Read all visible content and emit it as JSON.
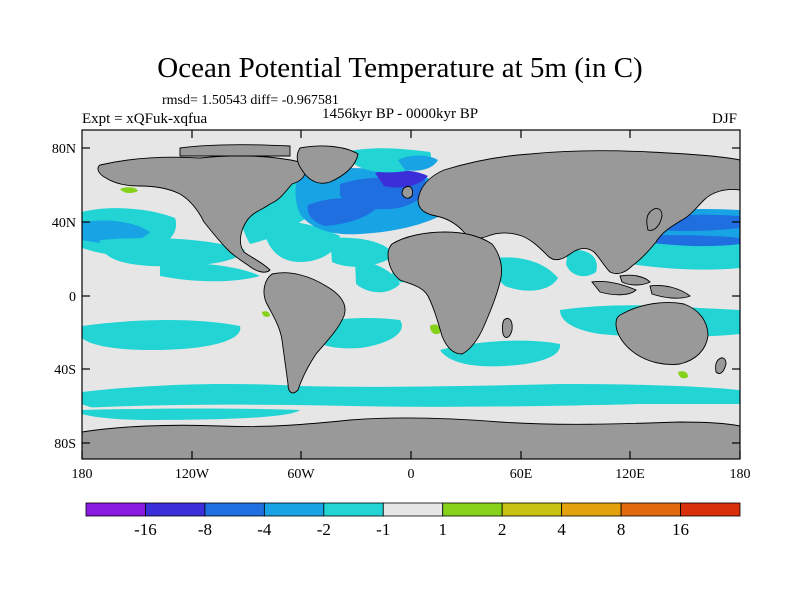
{
  "title": "Ocean Potential Temperature at 5m (in C)",
  "stats": "rmsd= 1.50543 diff= -0.967581",
  "expt": "Expt = xQFuk-xqfua",
  "period": "1456kyr BP - 0000kyr BP",
  "season": "DJF",
  "lat_ticks": [
    "80N",
    "40N",
    "0",
    "40S",
    "80S"
  ],
  "lon_ticks": [
    "180",
    "120W",
    "60W",
    "0",
    "60E",
    "120E",
    "180"
  ],
  "colorbar": {
    "labels": [
      "-16",
      "-8",
      "-4",
      "-2",
      "-1",
      "1",
      "2",
      "4",
      "8",
      "16"
    ],
    "colors": [
      "#8a1be0",
      "#3a2fd9",
      "#1f6fe0",
      "#17a3e4",
      "#22d4d4",
      "#e6e6e6",
      "#86d11a",
      "#c8c212",
      "#e3a20c",
      "#e06a0c",
      "#d9300c"
    ]
  },
  "map_colors": {
    "land": "#999999",
    "ocean_neutral": "#e6e6e6",
    "cooling_1": "#22d4d4",
    "cooling_2": "#17a3e4",
    "cooling_4": "#1f6fe0",
    "cooling_8": "#3a2fd9",
    "warming_1": "#86d11a"
  }
}
